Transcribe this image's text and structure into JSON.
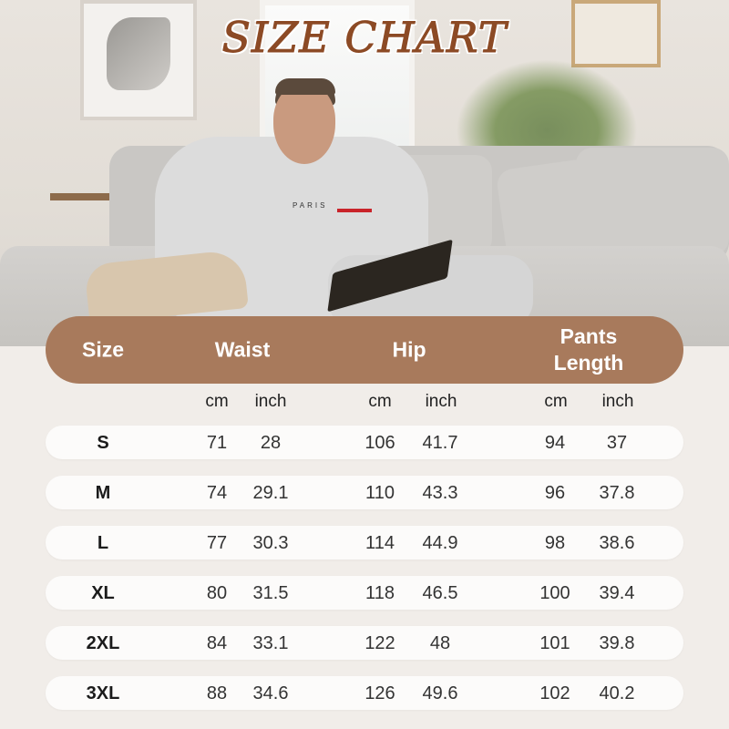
{
  "title": "SIZE CHART",
  "photo": {
    "shirt_print": "PARIS"
  },
  "colors": {
    "header_bg": "#a87a5c",
    "title": "#8c4a25",
    "row_bg": "#fcfbfa"
  },
  "table": {
    "headers": [
      "Size",
      "Waist",
      "Hip",
      "Pants Length"
    ],
    "units": [
      "cm",
      "inch",
      "cm",
      "inch",
      "cm",
      "inch"
    ],
    "rows": [
      {
        "size": "S",
        "waist_cm": "71",
        "waist_in": "28",
        "hip_cm": "106",
        "hip_in": "41.7",
        "len_cm": "94",
        "len_in": "37"
      },
      {
        "size": "M",
        "waist_cm": "74",
        "waist_in": "29.1",
        "hip_cm": "110",
        "hip_in": "43.3",
        "len_cm": "96",
        "len_in": "37.8"
      },
      {
        "size": "L",
        "waist_cm": "77",
        "waist_in": "30.3",
        "hip_cm": "114",
        "hip_in": "44.9",
        "len_cm": "98",
        "len_in": "38.6"
      },
      {
        "size": "XL",
        "waist_cm": "80",
        "waist_in": "31.5",
        "hip_cm": "118",
        "hip_in": "46.5",
        "len_cm": "100",
        "len_in": "39.4"
      },
      {
        "size": "2XL",
        "waist_cm": "84",
        "waist_in": "33.1",
        "hip_cm": "122",
        "hip_in": "48",
        "len_cm": "101",
        "len_in": "39.8"
      },
      {
        "size": "3XL",
        "waist_cm": "88",
        "waist_in": "34.6",
        "hip_cm": "126",
        "hip_in": "49.6",
        "len_cm": "102",
        "len_in": "40.2"
      }
    ]
  }
}
